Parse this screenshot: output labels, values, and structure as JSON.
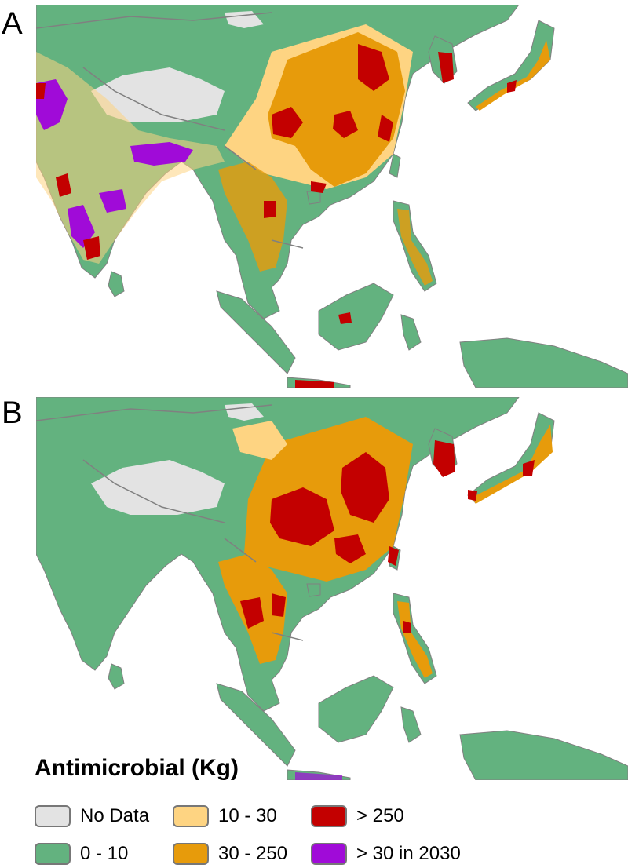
{
  "panels": [
    {
      "label": "A"
    },
    {
      "label": "B"
    }
  ],
  "legend": {
    "title": "Antimicrobial (Kg)",
    "items": [
      {
        "label": "No Data",
        "color": "#e3e3e3"
      },
      {
        "label": "0 - 10",
        "color": "#63b27f"
      },
      {
        "label": "10 - 30",
        "color": "#fed482"
      },
      {
        "label": "30 - 250",
        "color": "#e79b0b"
      },
      {
        "label": ">  250",
        "color": "#c30000"
      },
      {
        "label": "> 30 in 2030",
        "color": "#a00bd8"
      }
    ]
  },
  "colors": {
    "ocean": "#ffffff",
    "land": "#63b27f",
    "border": "#808080",
    "no_data": "#e3e3e3",
    "low": "#fed482",
    "mid": "#e79b0b",
    "high": "#c30000",
    "growth_2030": "#a00bd8"
  }
}
